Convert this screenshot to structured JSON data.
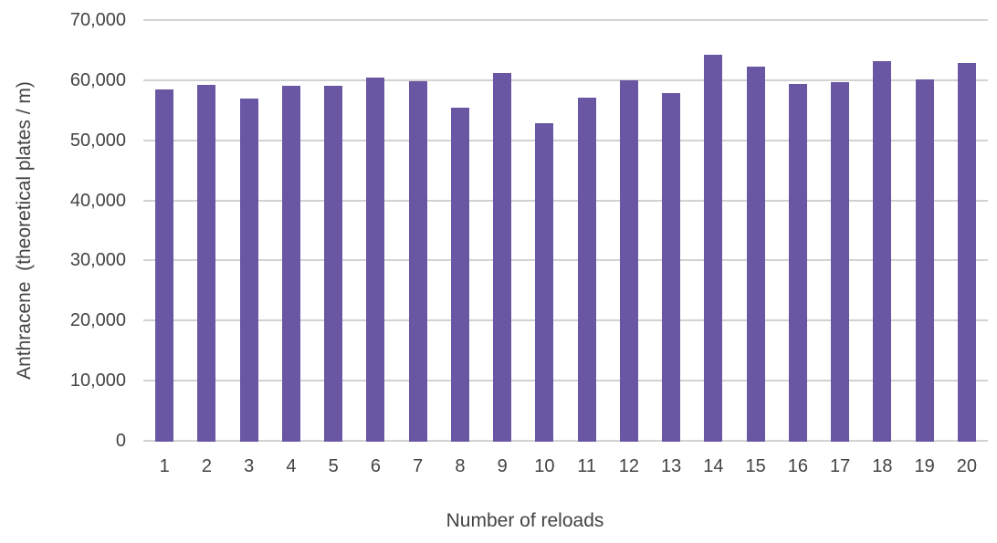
{
  "chart_data": {
    "type": "bar",
    "title": "",
    "xlabel": "Number of reloads",
    "ylabel": "Anthracene  (theoretical plates / m)",
    "categories": [
      "1",
      "2",
      "3",
      "4",
      "5",
      "6",
      "7",
      "8",
      "9",
      "10",
      "11",
      "12",
      "13",
      "14",
      "15",
      "16",
      "17",
      "18",
      "19",
      "20"
    ],
    "values": [
      58300,
      59100,
      56800,
      58900,
      59000,
      60300,
      59700,
      55300,
      61100,
      52700,
      57000,
      59900,
      57700,
      64100,
      62100,
      59300,
      59500,
      63000,
      60000,
      62700
    ],
    "ylim": [
      0,
      70000
    ],
    "ytick_interval": 10000,
    "ytick_labels_top_to_bottom": [
      "70,000",
      "60,000",
      "50,000",
      "40,000",
      "30,000",
      "20,000",
      "10,000",
      "0"
    ],
    "grid": true,
    "legend": false,
    "colors": {
      "bar": "#6A57A3",
      "gridline": "#D2D2D2",
      "text": "#434343",
      "background": "#FFFFFF"
    }
  }
}
